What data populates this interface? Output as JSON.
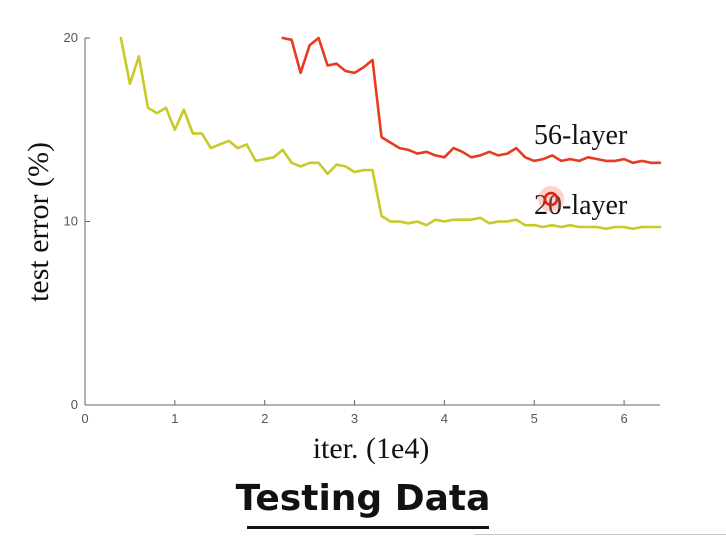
{
  "caption": "Testing Data",
  "chart_data": {
    "type": "line",
    "title": "",
    "xlabel": "iter. (1e4)",
    "ylabel": "test error (%)",
    "xlim": [
      0,
      6.4
    ],
    "ylim": [
      0,
      20
    ],
    "x_ticks": [
      0,
      1,
      2,
      3,
      4,
      5,
      6
    ],
    "y_ticks": [
      0,
      10,
      20
    ],
    "grid": false,
    "colors": {
      "56-layer": "#e83a1e",
      "20-layer": "#c9c928"
    },
    "series": [
      {
        "name": "56-layer",
        "x": [
          2.2,
          2.3,
          2.4,
          2.5,
          2.6,
          2.7,
          2.8,
          2.9,
          3.0,
          3.1,
          3.2,
          3.3,
          3.4,
          3.5,
          3.6,
          3.7,
          3.8,
          3.9,
          4.0,
          4.1,
          4.2,
          4.3,
          4.4,
          4.5,
          4.6,
          4.7,
          4.8,
          4.9,
          5.0,
          5.1,
          5.2,
          5.3,
          5.4,
          5.5,
          5.6,
          5.7,
          5.8,
          5.9,
          6.0,
          6.1,
          6.2,
          6.3,
          6.4
        ],
        "values": [
          20.0,
          19.9,
          18.1,
          19.6,
          20.0,
          18.5,
          18.6,
          18.2,
          18.1,
          18.4,
          18.8,
          14.6,
          14.3,
          14.0,
          13.9,
          13.7,
          13.8,
          13.6,
          13.5,
          14.0,
          13.8,
          13.5,
          13.6,
          13.8,
          13.6,
          13.7,
          14.0,
          13.5,
          13.3,
          13.4,
          13.6,
          13.3,
          13.4,
          13.3,
          13.5,
          13.4,
          13.3,
          13.3,
          13.4,
          13.2,
          13.3,
          13.2,
          13.2
        ]
      },
      {
        "name": "20-layer",
        "x": [
          0.4,
          0.5,
          0.6,
          0.7,
          0.8,
          0.9,
          1.0,
          1.1,
          1.2,
          1.3,
          1.4,
          1.5,
          1.6,
          1.7,
          1.8,
          1.9,
          2.0,
          2.1,
          2.2,
          2.3,
          2.4,
          2.5,
          2.6,
          2.7,
          2.8,
          2.9,
          3.0,
          3.1,
          3.2,
          3.3,
          3.4,
          3.5,
          3.6,
          3.7,
          3.8,
          3.9,
          4.0,
          4.1,
          4.2,
          4.3,
          4.4,
          4.5,
          4.6,
          4.7,
          4.8,
          4.9,
          5.0,
          5.1,
          5.2,
          5.3,
          5.4,
          5.5,
          5.6,
          5.7,
          5.8,
          5.9,
          6.0,
          6.1,
          6.2,
          6.3,
          6.4
        ],
        "values": [
          20.0,
          17.5,
          19.0,
          16.2,
          15.9,
          16.2,
          15.0,
          16.1,
          14.8,
          14.8,
          14.0,
          14.2,
          14.4,
          14.0,
          14.2,
          13.3,
          13.4,
          13.5,
          13.9,
          13.2,
          13.0,
          13.2,
          13.2,
          12.6,
          13.1,
          13.0,
          12.7,
          12.8,
          12.8,
          10.3,
          10.0,
          10.0,
          9.9,
          10.0,
          9.8,
          10.1,
          10.0,
          10.1,
          10.1,
          10.1,
          10.2,
          9.9,
          10.0,
          10.0,
          10.1,
          9.8,
          9.8,
          9.7,
          9.8,
          9.7,
          9.8,
          9.7,
          9.7,
          9.7,
          9.6,
          9.7,
          9.7,
          9.6,
          9.7,
          9.7,
          9.7
        ]
      }
    ]
  }
}
